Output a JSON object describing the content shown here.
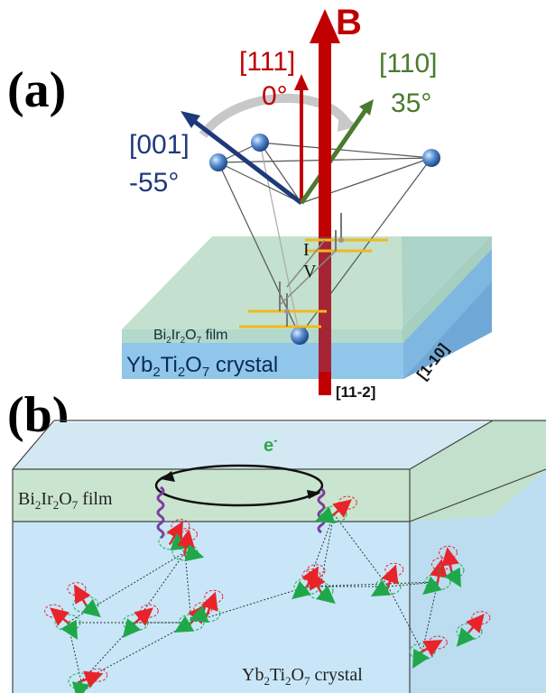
{
  "panel_a": {
    "label": "(a)",
    "field_label": "B",
    "dir_111": "[111]",
    "angle_111": "0°",
    "dir_110": "[110]",
    "angle_110": "35°",
    "dir_001": "[001]",
    "angle_001": "-55°",
    "current_label": "I",
    "voltage_label": "V",
    "film": {
      "base": "Bi",
      "s1": "2",
      "mid": "Ir",
      "s2": "2",
      "end": "O",
      "s3": "7",
      "suffix": " film"
    },
    "crystal": {
      "base": "Yb",
      "s1": "2",
      "mid": "Ti",
      "s2": "2",
      "end": "O",
      "s3": "7",
      "suffix": " crystal"
    },
    "axis_11m2": "[11-2]",
    "axis_1m10": "[1-10]"
  },
  "panel_b": {
    "label": "(b)",
    "electron_base": "e",
    "electron_sup": "-",
    "film": {
      "base": "Bi",
      "s1": "2",
      "mid": "Ir",
      "s2": "2",
      "end": "O",
      "s3": "7",
      "suffix": " film"
    },
    "crystal": {
      "base": "Yb",
      "s1": "2",
      "mid": "Ti",
      "s2": "2",
      "end": "O",
      "s3": "7",
      "suffix": " crystal"
    }
  },
  "colors": {
    "field": "#c00000",
    "dir_111": "#c00000",
    "dir_110": "#4a7a2e",
    "dir_001": "#1f3a7a",
    "film": "#cfe8c8",
    "crystal": "#bfe3f5",
    "spin_red": "#e8242a",
    "spin_green": "#1fa84a",
    "magnon": "#7b3fa0"
  }
}
